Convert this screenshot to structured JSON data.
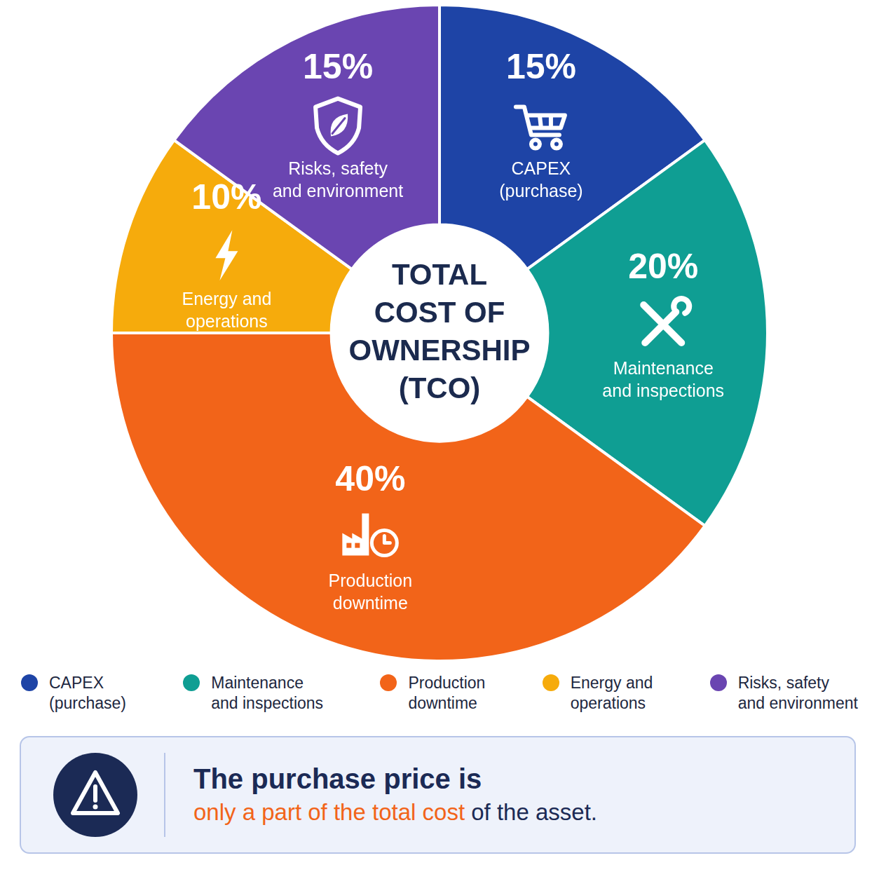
{
  "chart_data": {
    "type": "doughnut",
    "title": "TOTAL COST OF OWNERSHIP (TCO)",
    "categories": [
      "CAPEX (purchase)",
      "Maintenance and inspections",
      "Production downtime",
      "Energy and operations",
      "Risks, safety and environment"
    ],
    "values": [
      15,
      20,
      40,
      10,
      15
    ],
    "value_labels": [
      "15%",
      "20%",
      "40%",
      "10%",
      "15%"
    ],
    "colors": [
      "#1e44a6",
      "#0f9e93",
      "#f26419",
      "#f6ab0c",
      "#6a45b1"
    ],
    "data_labels": true,
    "legend": "bottom",
    "annotations": [
      "The purchase price is",
      "only a part of the total cost",
      "of the asset."
    ]
  }
}
